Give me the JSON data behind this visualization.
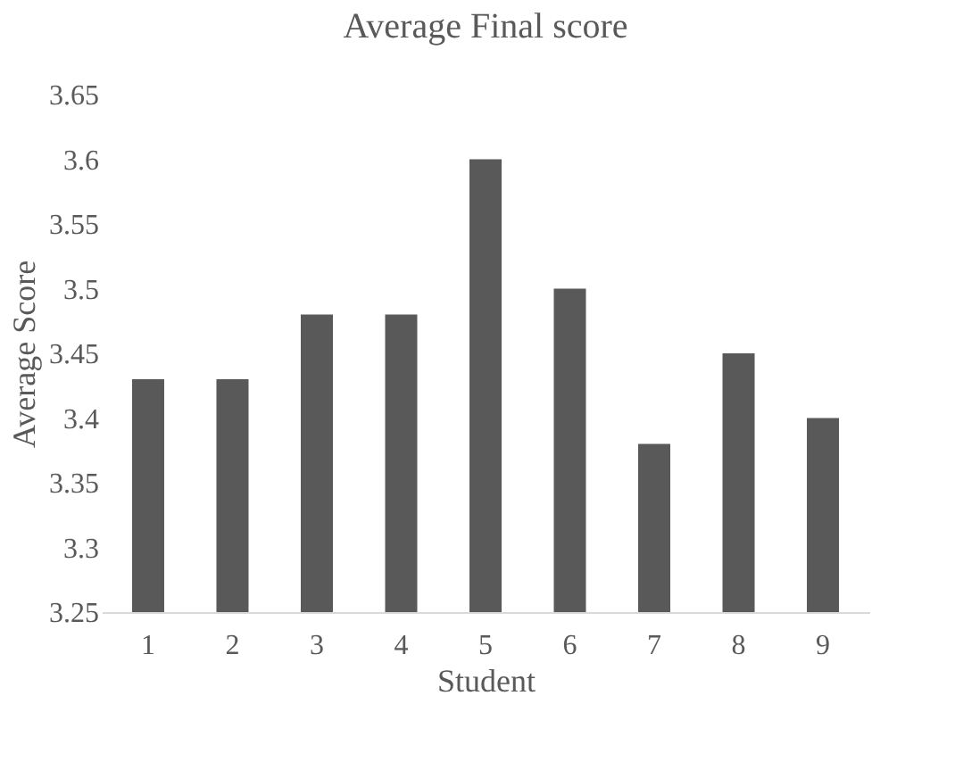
{
  "chart_data": {
    "type": "bar",
    "title": "Average Final score",
    "xlabel": "Student",
    "ylabel": "Average Score",
    "categories": [
      "1",
      "2",
      "3",
      "4",
      "5",
      "6",
      "7",
      "8",
      "9"
    ],
    "values": [
      3.43,
      3.43,
      3.48,
      3.48,
      3.6,
      3.5,
      3.38,
      3.45,
      3.4
    ],
    "color": "#595959",
    "ylim": [
      3.25,
      3.65
    ],
    "yticks": [
      3.25,
      3.3,
      3.35,
      3.4,
      3.45,
      3.5,
      3.55,
      3.6,
      3.65
    ],
    "grid": false
  }
}
